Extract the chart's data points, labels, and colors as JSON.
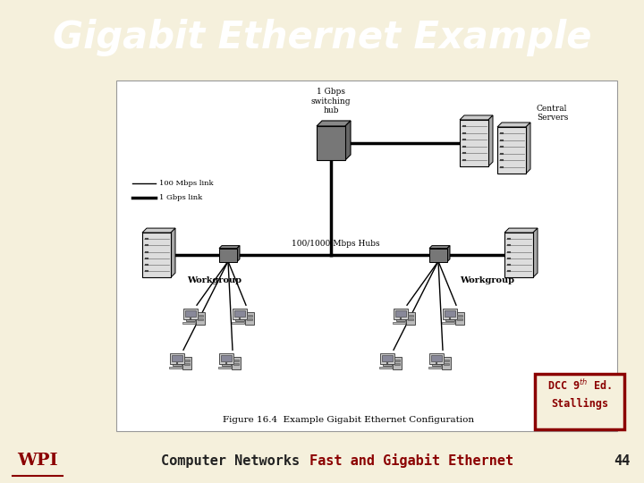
{
  "title": "Gigabit Ethernet Example",
  "title_bg": "#8B0000",
  "title_color": "#FFFFFF",
  "title_fontsize": 30,
  "slide_bg": "#F5F0DC",
  "content_bg": "#FFFFFF",
  "footer_bg": "#BEBEBE",
  "footer_text1": "Computer Networks",
  "footer_text2": "Fast and Gigabit Ethernet",
  "footer_text_color1": "#222222",
  "footer_text_color2": "#8B0000",
  "footer_num": "44",
  "footer_fontsize": 11,
  "dcc_border_color": "#8B0000",
  "dcc_text_color": "#8B0000",
  "figure_caption": "Figure 16.4  Example Gigabit Ethernet Configuration",
  "wpi_color": "#8B0000",
  "legend_100": "100 Mbps link",
  "legend_1g": "1 Gbps link",
  "label_hub": "1 Gbps\nswitching\nhub",
  "label_central": "Central\nServers",
  "label_hubs": "100/1000-Mbps Hubs",
  "label_wg": "Workgroup",
  "lw_thin": 1.0,
  "lw_thick": 2.5
}
